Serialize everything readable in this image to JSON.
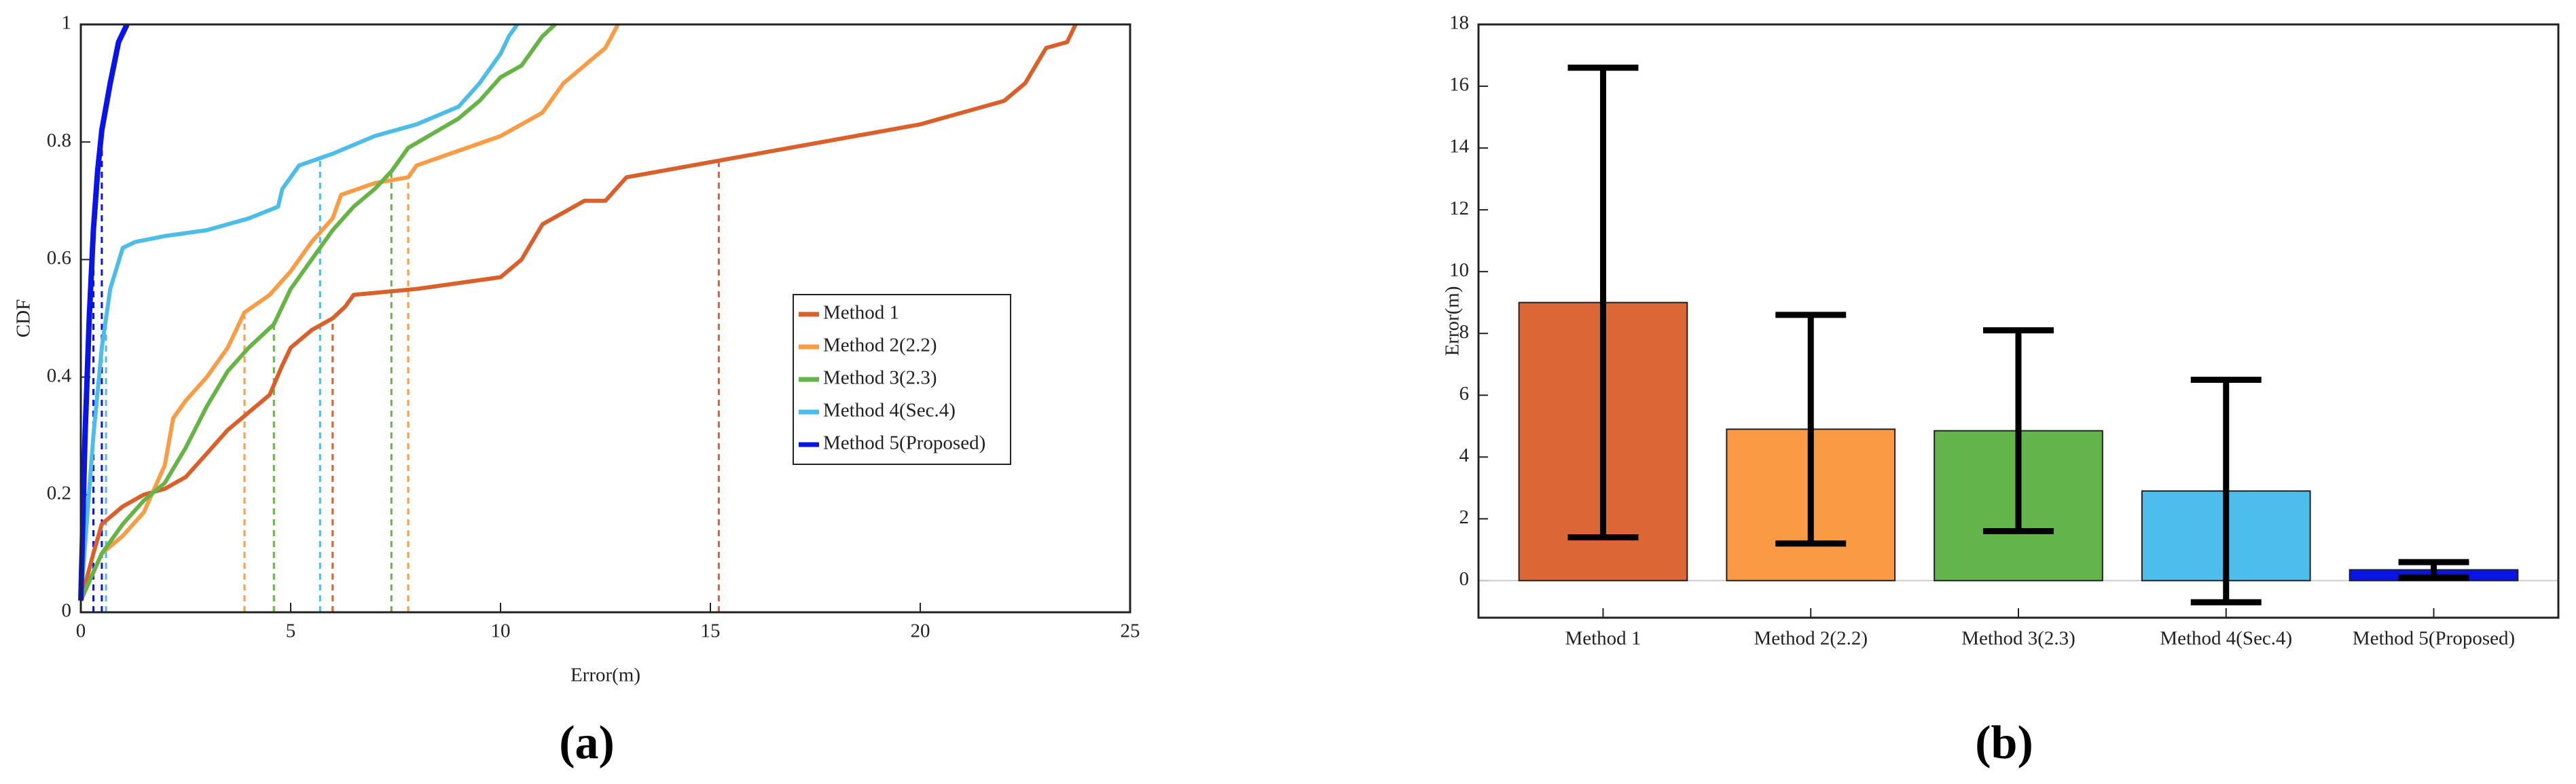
{
  "chart_data": [
    {
      "type": "line",
      "caption": "(a)",
      "xlabel": "Error(m)",
      "ylabel": "CDF",
      "xlim": [
        0,
        25
      ],
      "xticks": [
        0,
        5,
        10,
        15,
        20,
        25
      ],
      "ylim": [
        0,
        1
      ],
      "yticks": [
        0,
        0.2,
        0.4,
        0.6,
        0.8,
        1
      ],
      "legend": "right",
      "series": [
        {
          "name": "Method 1",
          "color": "#d95f2b",
          "dashed_x": [
            6.0,
            15.2
          ],
          "x": [
            0,
            0.3,
            0.5,
            1,
            1.5,
            2,
            2.5,
            3,
            3.5,
            4,
            4.5,
            4.8,
            5,
            5.5,
            6,
            6.3,
            6.5,
            8,
            10,
            10.5,
            11,
            11.5,
            12,
            12.5,
            13,
            20,
            22,
            22.5,
            23,
            23.5,
            23.7
          ],
          "values": [
            0.02,
            0.1,
            0.15,
            0.18,
            0.2,
            0.21,
            0.23,
            0.27,
            0.31,
            0.34,
            0.37,
            0.42,
            0.45,
            0.48,
            0.5,
            0.52,
            0.54,
            0.55,
            0.57,
            0.6,
            0.66,
            0.68,
            0.7,
            0.7,
            0.74,
            0.83,
            0.87,
            0.9,
            0.96,
            0.97,
            1
          ]
        },
        {
          "name": "Method 2(2.2)",
          "color": "#f89c45",
          "dashed_x": [
            3.9,
            7.8
          ],
          "x": [
            0,
            0.5,
            1,
            1.5,
            2,
            2.2,
            2.5,
            3,
            3.5,
            3.9,
            4.5,
            5,
            5.5,
            6,
            6.2,
            7,
            7.8,
            8,
            10,
            11,
            11.5,
            12,
            12.5,
            12.8
          ],
          "values": [
            0.02,
            0.1,
            0.13,
            0.17,
            0.25,
            0.33,
            0.36,
            0.4,
            0.45,
            0.51,
            0.54,
            0.58,
            0.63,
            0.67,
            0.71,
            0.73,
            0.74,
            0.76,
            0.81,
            0.85,
            0.9,
            0.93,
            0.96,
            1
          ]
        },
        {
          "name": "Method 3(2.3)",
          "color": "#66b446",
          "dashed_x": [
            4.6,
            7.4
          ],
          "x": [
            0,
            0.5,
            1,
            1.5,
            2,
            2.5,
            3,
            3.5,
            4,
            4.6,
            5,
            5.5,
            6,
            6.5,
            7,
            7.4,
            7.8,
            9,
            9.5,
            10,
            10.5,
            11,
            11.3
          ],
          "values": [
            0.02,
            0.1,
            0.15,
            0.19,
            0.22,
            0.28,
            0.35,
            0.41,
            0.45,
            0.49,
            0.55,
            0.6,
            0.65,
            0.69,
            0.72,
            0.75,
            0.79,
            0.84,
            0.87,
            0.91,
            0.93,
            0.98,
            1
          ]
        },
        {
          "name": "Method 4(Sec.4)",
          "color": "#4dbde8",
          "dashed_x": [
            0.6,
            5.7
          ],
          "x": [
            0,
            0.3,
            0.5,
            0.7,
            1,
            1.3,
            2,
            3,
            4,
            4.7,
            4.8,
            5,
            5.2,
            6,
            7,
            8,
            9,
            9.5,
            10,
            10.2,
            10.4
          ],
          "values": [
            0.02,
            0.3,
            0.45,
            0.55,
            0.62,
            0.63,
            0.64,
            0.65,
            0.67,
            0.69,
            0.72,
            0.74,
            0.76,
            0.78,
            0.81,
            0.83,
            0.86,
            0.9,
            0.95,
            0.98,
            1
          ]
        },
        {
          "name": "Method 5(Proposed)",
          "color": "#0a14e6",
          "dashed_x": [
            0.3,
            0.5
          ],
          "x": [
            0,
            0.1,
            0.2,
            0.3,
            0.4,
            0.5,
            0.7,
            0.9,
            1.1
          ],
          "values": [
            0.02,
            0.3,
            0.5,
            0.65,
            0.75,
            0.82,
            0.9,
            0.97,
            1
          ]
        }
      ]
    },
    {
      "type": "bar",
      "caption": "(b)",
      "ylabel": "Error(m)",
      "categories": [
        "Method 1",
        "Method 2(2.2)",
        "Method 3(2.3)",
        "Method 4(Sec.4)",
        "Method 5(Proposed)"
      ],
      "values": [
        9.0,
        4.9,
        4.85,
        2.9,
        0.35
      ],
      "errors": [
        7.6,
        3.7,
        3.25,
        3.6,
        0.25
      ],
      "colors": [
        "#dd6637",
        "#fb9a45",
        "#64b44c",
        "#4dbdec",
        "#0a14e6"
      ],
      "ylim": [
        -1.2,
        18
      ],
      "yticks": [
        0,
        2,
        4,
        6,
        8,
        10,
        12,
        14,
        16,
        18
      ]
    }
  ]
}
